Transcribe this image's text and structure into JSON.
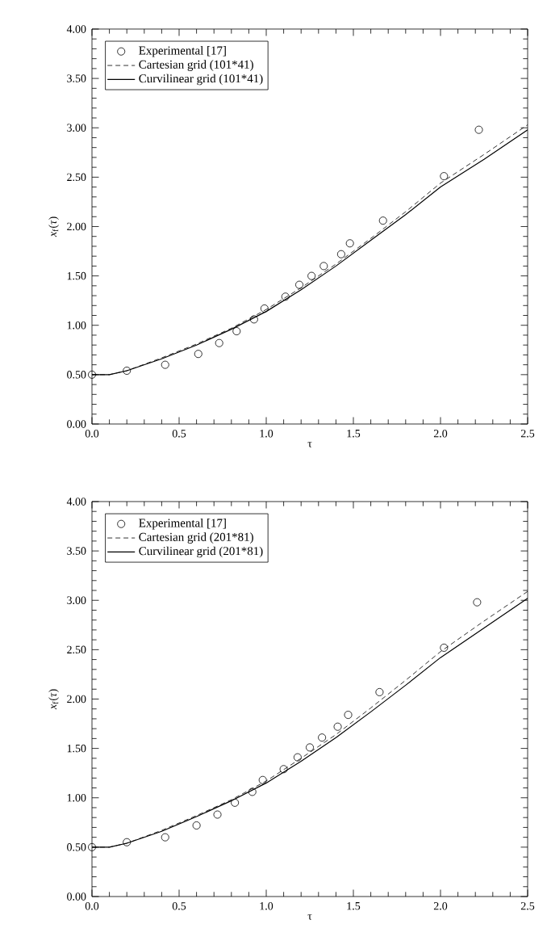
{
  "chart_data": [
    {
      "type": "line",
      "xlabel": "τ",
      "ylabel": "*x*$_{f}$(*τ*)",
      "xlim": [
        0,
        2.5
      ],
      "ylim": [
        0,
        4
      ],
      "xticks": [
        {
          "value": 0,
          "label": "0.0"
        },
        {
          "value": 0.5,
          "label": "0.5"
        },
        {
          "value": 1,
          "label": "1.0"
        },
        {
          "value": 1.5,
          "label": "1.5"
        },
        {
          "value": 2,
          "label": "2.0"
        },
        {
          "value": 2.5,
          "label": "2.5"
        }
      ],
      "yticks": [
        {
          "value": 0,
          "label": "0.00"
        },
        {
          "value": 0.5,
          "label": "0.50"
        },
        {
          "value": 1,
          "label": "1.00"
        },
        {
          "value": 1.5,
          "label": "1.50"
        },
        {
          "value": 2,
          "label": "2.00"
        },
        {
          "value": 2.5,
          "label": "2.50"
        },
        {
          "value": 3,
          "label": "3.00"
        },
        {
          "value": 3.5,
          "label": "3.50"
        },
        {
          "value": 4,
          "label": "4.00"
        }
      ],
      "legend": "top left",
      "series": [
        {
          "name": "Experimental [17]",
          "type": "scatter",
          "marker": "circle",
          "color": "#000000",
          "x": [
            0,
            0.2,
            0.42,
            0.61,
            0.73,
            0.83,
            0.93,
            0.99,
            1.11,
            1.19,
            1.26,
            1.33,
            1.43,
            1.48,
            1.67,
            2.02,
            2.22
          ],
          "values": [
            0.5,
            0.54,
            0.6,
            0.71,
            0.82,
            0.94,
            1.06,
            1.17,
            1.29,
            1.41,
            1.5,
            1.6,
            1.72,
            1.83,
            2.06,
            2.51,
            2.98
          ]
        },
        {
          "name": "Cartesian grid (101*41)",
          "line_style": "dashed",
          "color": "#000000",
          "x": [
            0,
            0.1,
            0.2,
            0.4,
            0.6,
            0.8,
            1.0,
            1.2,
            1.4,
            1.6,
            1.8,
            2.0,
            2.25,
            2.5
          ],
          "values": [
            0.5,
            0.5,
            0.54,
            0.67,
            0.81,
            0.97,
            1.16,
            1.38,
            1.62,
            1.88,
            2.15,
            2.44,
            2.73,
            3.03
          ]
        },
        {
          "name": "Curvilinear grid (101*41)",
          "line_style": "solid",
          "color": "#000000",
          "x": [
            0,
            0.1,
            0.2,
            0.4,
            0.6,
            0.8,
            1.0,
            1.2,
            1.4,
            1.6,
            1.8,
            2.0,
            2.25,
            2.5
          ],
          "values": [
            0.5,
            0.5,
            0.54,
            0.66,
            0.8,
            0.96,
            1.14,
            1.36,
            1.6,
            1.86,
            2.12,
            2.4,
            2.68,
            2.98
          ]
        }
      ]
    },
    {
      "type": "line",
      "xlabel": "τ",
      "ylabel": "*x*$_{f}$(*τ*)",
      "xlim": [
        0,
        2.5
      ],
      "ylim": [
        0,
        4
      ],
      "xticks": [
        {
          "value": 0,
          "label": "0.0"
        },
        {
          "value": 0.5,
          "label": "0.5"
        },
        {
          "value": 1,
          "label": "1.0"
        },
        {
          "value": 1.5,
          "label": "1.5"
        },
        {
          "value": 2,
          "label": "2.0"
        },
        {
          "value": 2.5,
          "label": "2.5"
        }
      ],
      "yticks": [
        {
          "value": 0,
          "label": "0.00"
        },
        {
          "value": 0.5,
          "label": "0.50"
        },
        {
          "value": 1,
          "label": "1.00"
        },
        {
          "value": 1.5,
          "label": "1.50"
        },
        {
          "value": 2,
          "label": "2.00"
        },
        {
          "value": 2.5,
          "label": "2.50"
        },
        {
          "value": 3,
          "label": "3.00"
        },
        {
          "value": 3.5,
          "label": "3.50"
        },
        {
          "value": 4,
          "label": "4.00"
        }
      ],
      "legend": "top left",
      "series": [
        {
          "name": "Experimental [17]",
          "type": "scatter",
          "marker": "circle",
          "color": "#000000",
          "x": [
            0,
            0.2,
            0.42,
            0.6,
            0.72,
            0.82,
            0.92,
            0.98,
            1.1,
            1.18,
            1.25,
            1.32,
            1.41,
            1.47,
            1.65,
            2.02,
            2.21
          ],
          "values": [
            0.5,
            0.55,
            0.6,
            0.72,
            0.83,
            0.95,
            1.06,
            1.18,
            1.29,
            1.41,
            1.51,
            1.61,
            1.72,
            1.84,
            2.07,
            2.52,
            2.98
          ]
        },
        {
          "name": "Cartesian grid (201*81)",
          "line_style": "dashed",
          "color": "#000000",
          "x": [
            0,
            0.1,
            0.2,
            0.4,
            0.6,
            0.8,
            1.0,
            1.2,
            1.4,
            1.6,
            1.8,
            2.0,
            2.25,
            2.5
          ],
          "values": [
            0.5,
            0.5,
            0.54,
            0.67,
            0.82,
            0.98,
            1.17,
            1.4,
            1.64,
            1.91,
            2.19,
            2.48,
            2.79,
            3.09
          ]
        },
        {
          "name": "Curvilinear grid (201*81)",
          "line_style": "solid",
          "color": "#000000",
          "x": [
            0,
            0.1,
            0.2,
            0.4,
            0.6,
            0.8,
            1.0,
            1.2,
            1.4,
            1.6,
            1.8,
            2.0,
            2.25,
            2.5
          ],
          "values": [
            0.5,
            0.5,
            0.54,
            0.66,
            0.81,
            0.97,
            1.15,
            1.37,
            1.61,
            1.87,
            2.14,
            2.42,
            2.72,
            3.02
          ]
        }
      ]
    }
  ]
}
